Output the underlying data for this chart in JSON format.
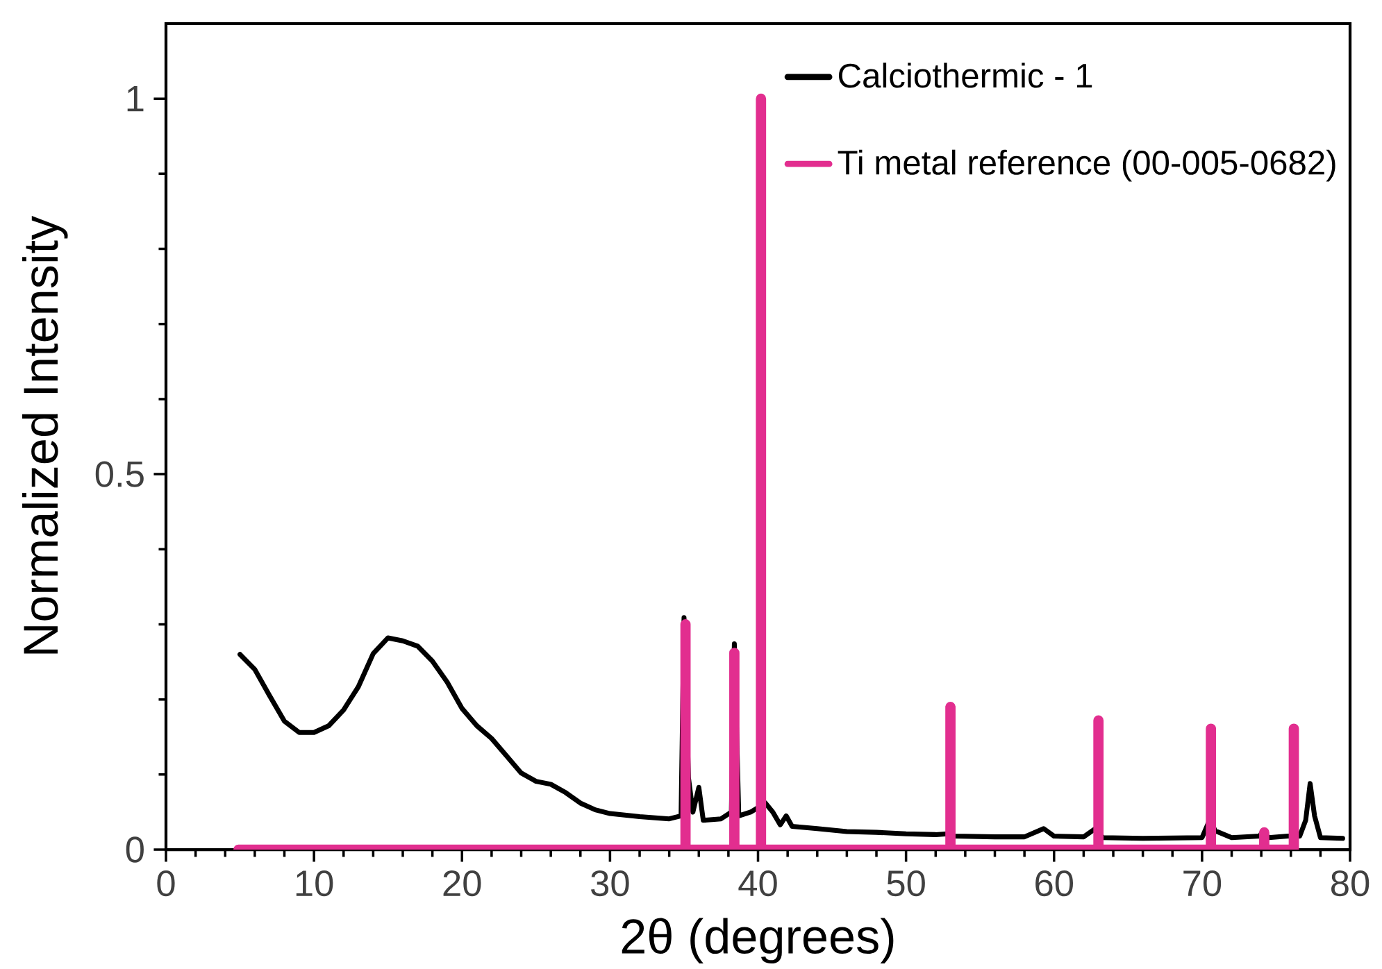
{
  "chart_data": {
    "type": "line",
    "xlabel": "2θ (degrees)",
    "ylabel": "Normalized Intensity",
    "xlim": [
      0,
      80
    ],
    "xticks": [
      0,
      10,
      20,
      30,
      40,
      50,
      60,
      70,
      80
    ],
    "ylim": [
      0,
      1.1
    ],
    "yticks": [
      0,
      0.5,
      1
    ],
    "legend": "top right",
    "marker": "none",
    "line_style": "solid",
    "grid": false,
    "series": [
      {
        "name": "Calciothermic - 1",
        "color": "#000000",
        "x": [
          5,
          6,
          7,
          8,
          9,
          10,
          11,
          12,
          13,
          14,
          15,
          16,
          17,
          18,
          19,
          20,
          21,
          22,
          23,
          24,
          25,
          26,
          27,
          28,
          29,
          30,
          32,
          34,
          34.8,
          35.0,
          35.3,
          35.6,
          36.0,
          36.3,
          37.5,
          38.2,
          38.4,
          38.7,
          39.5,
          40.0,
          40.15,
          40.5,
          41.0,
          41.5,
          41.9,
          42.3,
          44,
          46,
          48,
          50,
          52,
          52.8,
          53.0,
          53.3,
          56,
          58,
          59.3,
          60,
          62,
          62.8,
          63.0,
          63.3,
          66,
          70,
          70.5,
          70.9,
          72,
          73.9,
          74.1,
          74.5,
          75.8,
          76.2,
          76.6,
          77.0,
          77.3,
          77.6,
          78.0,
          79.5
        ],
        "values": [
          0.26,
          0.24,
          0.205,
          0.171,
          0.156,
          0.156,
          0.165,
          0.186,
          0.217,
          0.261,
          0.282,
          0.278,
          0.271,
          0.251,
          0.223,
          0.188,
          0.165,
          0.148,
          0.125,
          0.102,
          0.091,
          0.087,
          0.076,
          0.062,
          0.053,
          0.048,
          0.044,
          0.041,
          0.045,
          0.309,
          0.096,
          0.05,
          0.083,
          0.039,
          0.041,
          0.05,
          0.274,
          0.045,
          0.05,
          null,
          null,
          0.062,
          0.05,
          0.033,
          0.045,
          0.031,
          0.028,
          0.024,
          0.023,
          0.021,
          0.02,
          0.021,
          null,
          0.018,
          0.017,
          0.017,
          0.028,
          0.018,
          0.017,
          0.028,
          null,
          0.016,
          0.015,
          0.016,
          0.039,
          0.025,
          0.016,
          0.018,
          0.025,
          0.016,
          0.018,
          null,
          0.018,
          0.039,
          0.088,
          0.045,
          0.016,
          0.015
        ]
      },
      {
        "name": "Ti metal reference (00-005-0682)",
        "color": "#e22e8f",
        "x": [
          4.9,
          35.1,
          35.1,
          35.1,
          38.4,
          38.4,
          38.4,
          40.2,
          40.2,
          40.2,
          53.0,
          53.0,
          53.0,
          63.0,
          63.0,
          63.0,
          70.6,
          70.6,
          70.6,
          74.2,
          74.2,
          74.2,
          76.2,
          76.2
        ],
        "values": [
          0,
          0,
          0.3,
          0,
          0,
          0.262,
          0,
          0,
          1.0,
          0,
          0,
          0.19,
          0,
          0,
          0.172,
          0,
          0,
          0.161,
          0,
          0,
          0.023,
          0,
          0,
          0.161
        ]
      }
    ]
  }
}
